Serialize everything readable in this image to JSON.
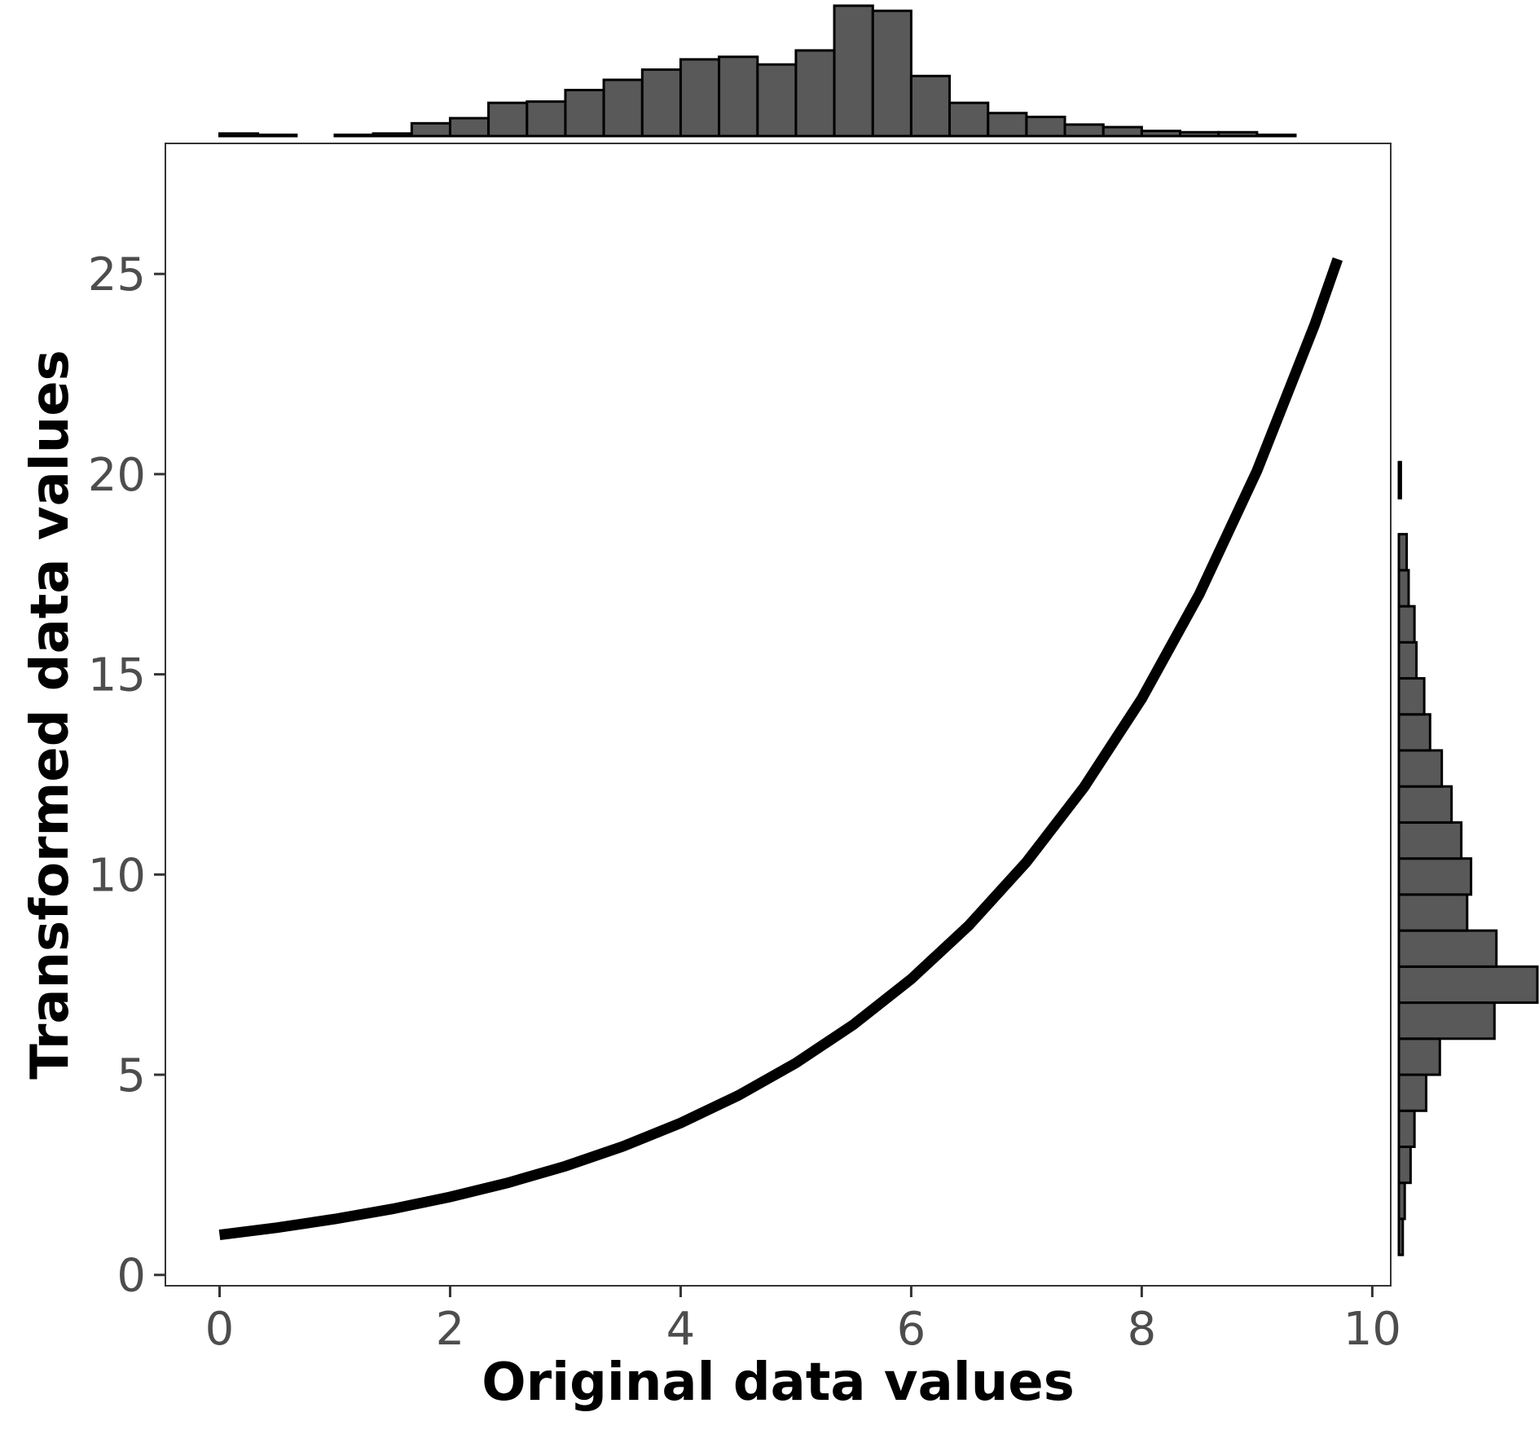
{
  "chart_data": {
    "type": "line",
    "title": "",
    "xlabel": "Original data values",
    "ylabel": "Transformed data values",
    "xlim": [
      -0.47,
      10.16
    ],
    "ylim": [
      -0.27,
      28.26
    ],
    "x_ticks": [
      0,
      2,
      4,
      6,
      8,
      10
    ],
    "y_ticks": [
      0,
      5,
      10,
      15,
      20,
      25
    ],
    "grid": false,
    "legend": "none",
    "line_color": "#000000",
    "bar_fill": "#595959",
    "bar_edge": "#000000",
    "line": {
      "transform": "exp(x/3)",
      "x": [
        0,
        0.5,
        1,
        1.5,
        2,
        2.5,
        3,
        3.5,
        4,
        4.5,
        5,
        5.5,
        6,
        6.5,
        7,
        7.5,
        8,
        8.5,
        9,
        9.5,
        9.7
      ],
      "y": [
        1,
        1.181,
        1.396,
        1.649,
        1.948,
        2.301,
        2.718,
        3.211,
        3.794,
        4.482,
        5.294,
        6.254,
        7.389,
        8.729,
        10.312,
        12.182,
        14.392,
        17.002,
        20.086,
        23.728,
        25.37
      ]
    },
    "top_histogram": {
      "bin_edges": [
        0,
        0.333,
        0.667,
        1.0,
        1.333,
        1.667,
        2.0,
        2.333,
        2.667,
        3.0,
        3.333,
        3.667,
        4.0,
        4.333,
        4.667,
        5.0,
        5.333,
        5.667,
        6.0,
        6.333,
        6.667,
        7.0,
        7.333,
        7.667,
        8.0,
        8.333,
        8.667,
        9.0,
        9.333,
        9.667
      ],
      "counts": [
        2,
        1,
        0,
        1,
        2,
        10,
        14,
        26,
        27,
        36,
        44,
        52,
        60,
        62,
        56,
        67,
        102,
        98,
        47,
        26,
        18,
        15,
        9,
        7,
        4,
        3,
        3,
        1,
        0
      ]
    },
    "right_histogram": {
      "bin_edges": [
        0.5,
        1.4,
        2.3,
        3.2,
        4.1,
        5.0,
        5.9,
        6.8,
        7.7,
        8.6,
        9.5,
        10.4,
        11.3,
        12.2,
        13.1,
        14.0,
        14.9,
        15.8,
        16.7,
        17.6,
        18.5,
        19.4,
        20.3,
        21.2,
        22.1,
        23.0,
        23.9,
        24.8,
        25.7,
        26.6
      ],
      "counts": [
        2,
        3,
        6,
        8,
        14,
        21,
        49,
        71,
        50,
        35,
        37,
        32,
        27,
        22,
        16,
        13,
        9,
        8,
        5,
        4,
        0,
        1,
        0,
        0,
        0,
        0,
        0,
        0,
        0
      ]
    }
  }
}
